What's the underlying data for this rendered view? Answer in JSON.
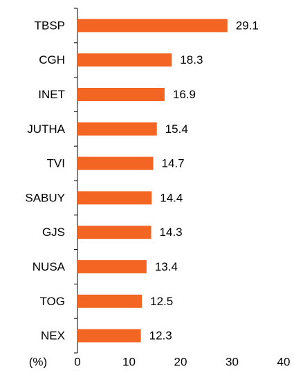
{
  "chart_data": {
    "type": "bar",
    "orientation": "horizontal",
    "categories": [
      "TBSP",
      "CGH",
      "INET",
      "JUTHA",
      "TVI",
      "SABUY",
      "GJS",
      "NUSA",
      "TOG",
      "NEX"
    ],
    "values": [
      29.1,
      18.3,
      16.9,
      15.4,
      14.7,
      14.4,
      14.3,
      13.4,
      12.5,
      12.3
    ],
    "color": "#f26522",
    "x_label": "(%)",
    "xlim": [
      0,
      40
    ],
    "xticks": [
      0,
      10,
      20,
      30,
      40
    ]
  }
}
